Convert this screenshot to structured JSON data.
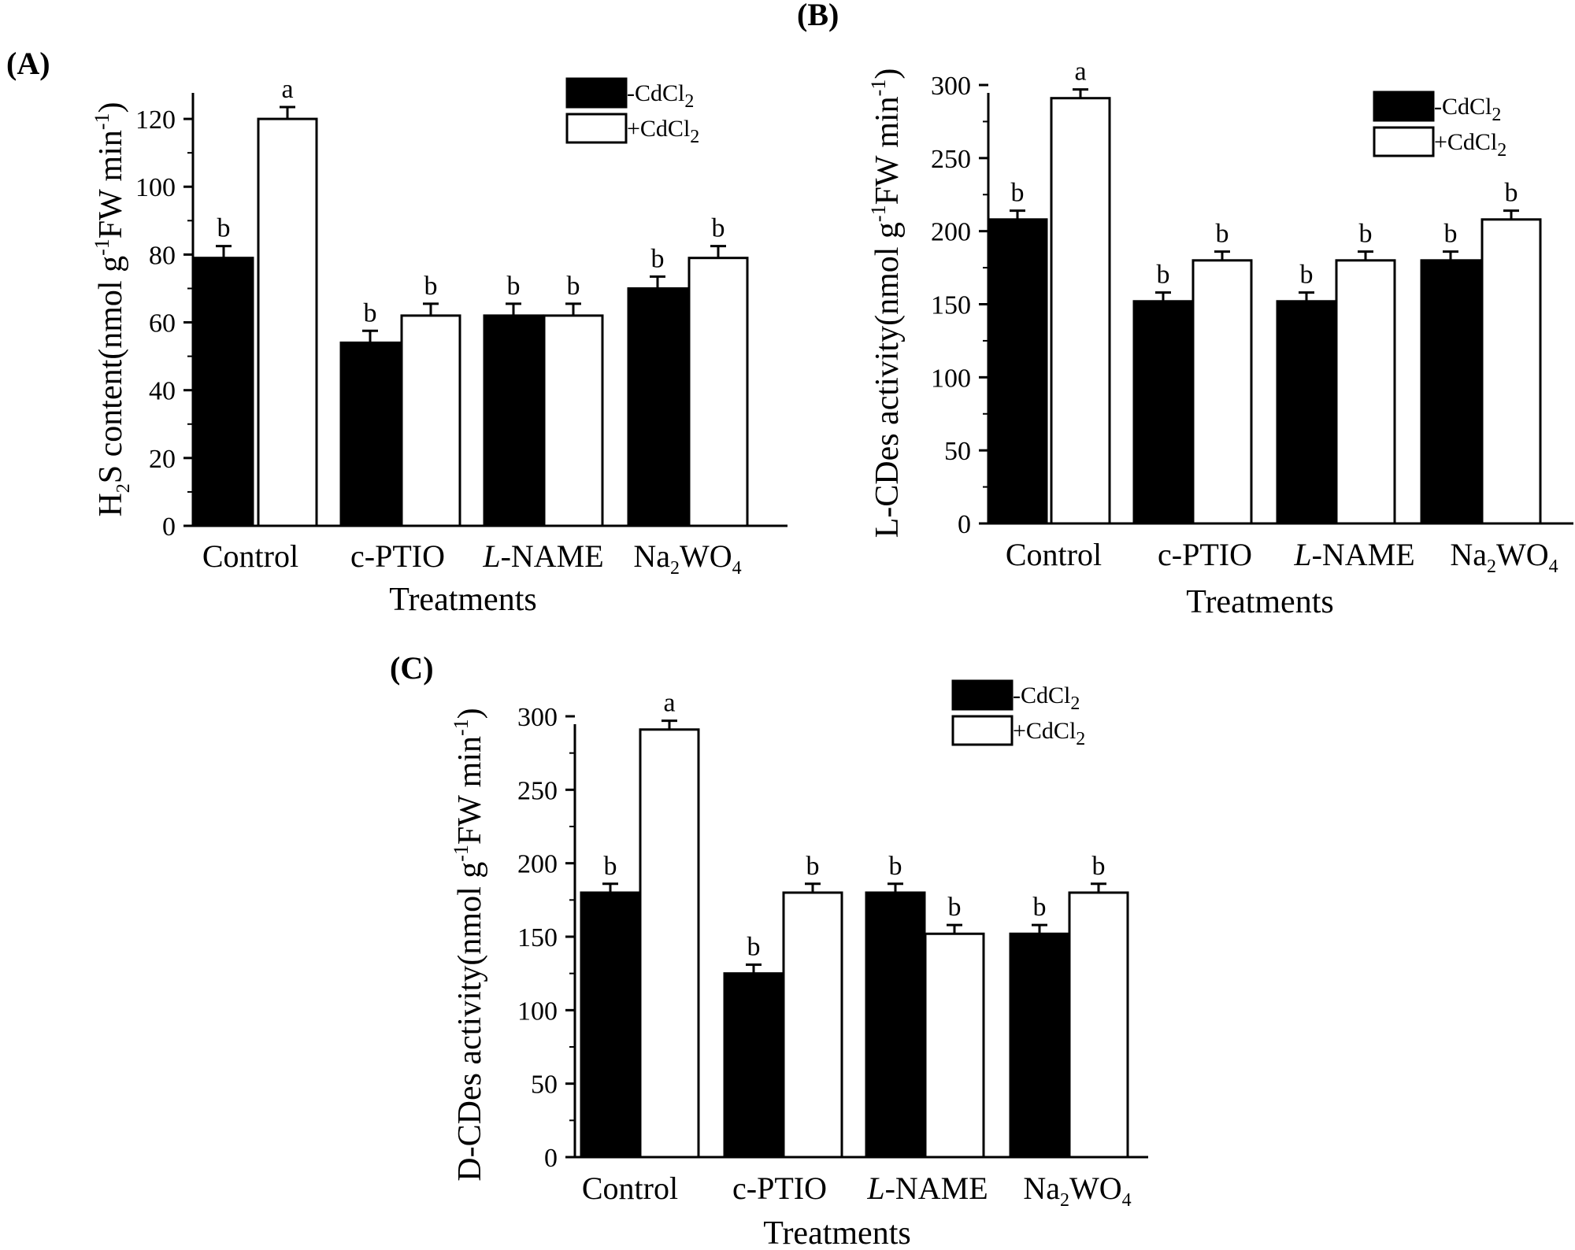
{
  "chart_data": [
    {
      "type": "bar",
      "panel_label": "(A)",
      "title": "",
      "xlabel": "Treatments",
      "ylabel": {
        "main": "H",
        "sub": "2",
        "rest": "S content(nmol g",
        "sup1": "-1",
        "rest2": "FW min",
        "sup2": "-1",
        "close": ")"
      },
      "categories": [
        {
          "key": "Control",
          "text": "Control"
        },
        {
          "key": "c-PTIO",
          "text": "c-PTIO"
        },
        {
          "key": "L-NAME",
          "prefix": "L",
          "text": "-NAME"
        },
        {
          "key": "Na2WO4",
          "text": "Na",
          "sub1": "2",
          "text2": "WO",
          "sub2": "4"
        }
      ],
      "ylim": [
        0,
        130
      ],
      "yticks": [
        0,
        20,
        40,
        60,
        80,
        100,
        120
      ],
      "legend": [
        {
          "name": "-CdCl",
          "sub": "2",
          "fill": "#000000"
        },
        {
          "name": "+CdCl",
          "sub": "2",
          "fill": "#ffffff"
        }
      ],
      "series": [
        {
          "name": "-CdCl2",
          "fill": "#000000",
          "values": [
            79,
            54,
            62,
            70
          ],
          "errors": [
            3.5,
            3.5,
            3.5,
            3.5
          ],
          "labels": [
            "b",
            "b",
            "b",
            "b"
          ]
        },
        {
          "name": "+CdCl2",
          "fill": "#ffffff",
          "values": [
            120,
            62,
            62,
            79
          ],
          "errors": [
            3.5,
            3.5,
            3.5,
            3.5
          ],
          "labels": [
            "a",
            "b",
            "b",
            "b"
          ]
        }
      ]
    },
    {
      "type": "bar",
      "panel_label": "(B)",
      "title": "",
      "xlabel": "Treatments",
      "ylabel": {
        "main": "L-CDes activity(nmol g",
        "sup1": "-1",
        "rest2": "FW min",
        "sup2": "-1",
        "close": ")"
      },
      "categories": [
        {
          "key": "Control",
          "text": "Control"
        },
        {
          "key": "c-PTIO",
          "text": "c-PTIO"
        },
        {
          "key": "L-NAME",
          "prefix": "L",
          "text": "-NAME"
        },
        {
          "key": "Na2WO4",
          "text": "Na",
          "sub1": "2",
          "text2": "WO",
          "sub2": "4"
        }
      ],
      "ylim": [
        0,
        300
      ],
      "yticks": [
        0,
        50,
        100,
        150,
        200,
        250,
        300
      ],
      "legend": [
        {
          "name": "-CdCl",
          "sub": "2",
          "fill": "#000000"
        },
        {
          "name": "+CdCl",
          "sub": "2",
          "fill": "#ffffff"
        }
      ],
      "series": [
        {
          "name": "-CdCl2",
          "fill": "#000000",
          "values": [
            208,
            152,
            152,
            180
          ],
          "errors": [
            6,
            6,
            6,
            6
          ],
          "labels": [
            "b",
            "b",
            "b",
            "b"
          ]
        },
        {
          "name": "+CdCl2",
          "fill": "#ffffff",
          "values": [
            291,
            180,
            180,
            208
          ],
          "errors": [
            6,
            6,
            6,
            6
          ],
          "labels": [
            "a",
            "b",
            "b",
            "b"
          ]
        }
      ]
    },
    {
      "type": "bar",
      "panel_label": "(C)",
      "title": "",
      "xlabel": "Treatments",
      "ylabel": {
        "main": "D-CDes activity(nmol g",
        "sup1": "-1",
        "rest2": "FW min",
        "sup2": "-1",
        "close": ")"
      },
      "categories": [
        {
          "key": "Control",
          "text": "Control"
        },
        {
          "key": "c-PTIO",
          "text": "c-PTIO"
        },
        {
          "key": "L-NAME",
          "prefix": "L",
          "text": "-NAME"
        },
        {
          "key": "Na2WO4",
          "text": "Na",
          "sub1": "2",
          "text2": "WO",
          "sub2": "4"
        }
      ],
      "ylim": [
        0,
        300
      ],
      "yticks": [
        0,
        50,
        100,
        150,
        200,
        250,
        300
      ],
      "legend": [
        {
          "name": "-CdCl",
          "sub": "2",
          "fill": "#000000"
        },
        {
          "name": "+CdCl",
          "sub": "2",
          "fill": "#ffffff"
        }
      ],
      "series": [
        {
          "name": "-CdCl2",
          "fill": "#000000",
          "values": [
            180,
            125,
            180,
            152
          ],
          "errors": [
            6,
            6,
            6,
            6
          ],
          "labels": [
            "b",
            "b",
            "b",
            "b"
          ]
        },
        {
          "name": "+CdCl2",
          "fill": "#ffffff",
          "values": [
            291,
            180,
            152,
            180
          ],
          "errors": [
            6,
            6,
            6,
            6
          ],
          "labels": [
            "a",
            "b",
            "b",
            "b"
          ]
        }
      ]
    }
  ]
}
